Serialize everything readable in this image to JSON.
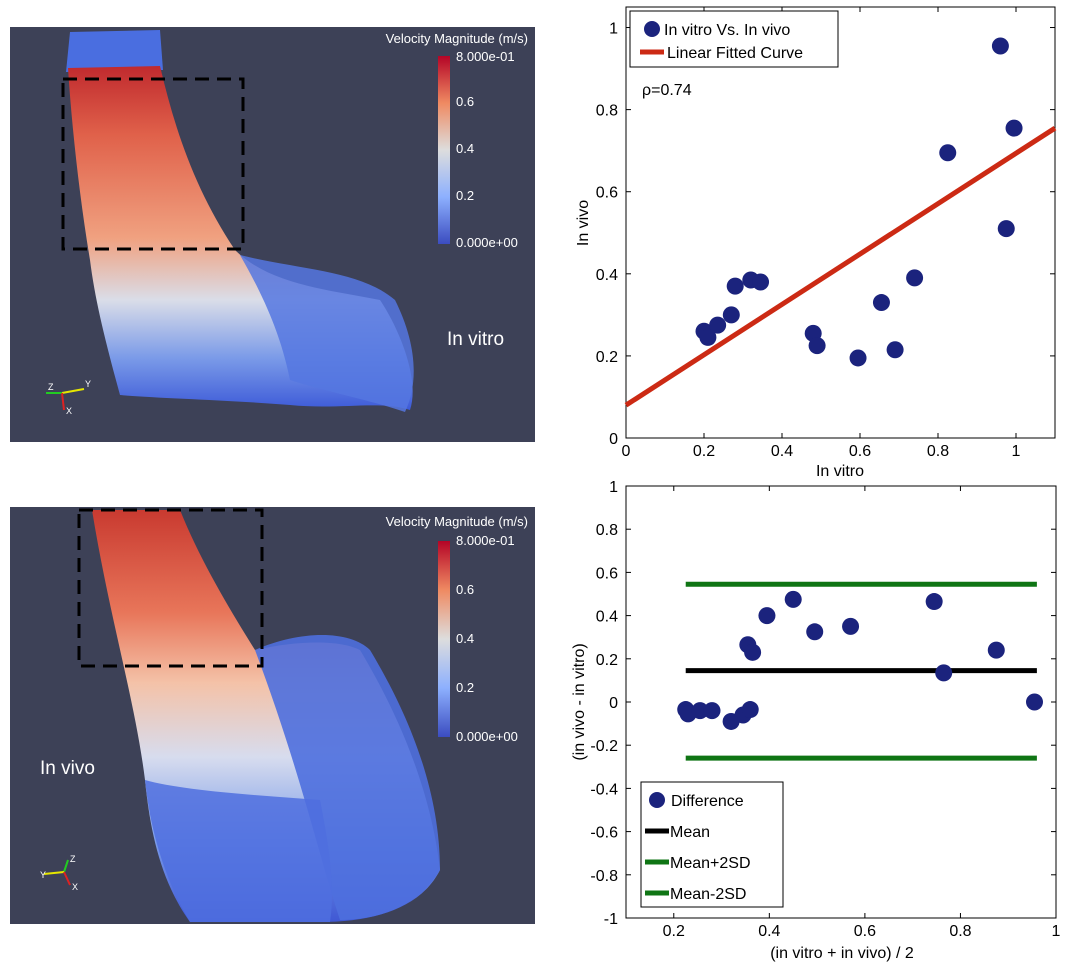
{
  "panels": {
    "top_left": {
      "colorbar_title": "Velocity Magnitude (m/s)",
      "colorbar_ticks": [
        "8.000e-01",
        "0.6",
        "0.4",
        "0.2",
        "0.000e+00"
      ],
      "label": "In vitro",
      "axes_triad": {
        "z": "Z",
        "y": "Y",
        "x": "X"
      }
    },
    "bottom_left": {
      "colorbar_title": "Velocity Magnitude (m/s)",
      "colorbar_ticks": [
        "8.000e-01",
        "0.6",
        "0.4",
        "0.2",
        "0.000e+00"
      ],
      "label": "In vivo",
      "axes_triad": {
        "z": "Z",
        "y": "Y",
        "x": "X"
      }
    }
  },
  "colors": {
    "render_bg": "#3d4157",
    "marker": "#1b237d",
    "fit_line": "#cc2a14",
    "mean_line": "#000000",
    "sd_lines": "#0f7514",
    "colormap_high": "#b40426",
    "colormap_mid": "#dddddd",
    "colormap_low": "#3b4cc0"
  },
  "chart_data": [
    {
      "type": "scatter",
      "xlabel": "In vitro",
      "ylabel": "In vivo",
      "xlim": [
        0,
        1.1
      ],
      "ylim": [
        0,
        1.05
      ],
      "xticks": [
        "0",
        "0.2",
        "0.4",
        "0.6",
        "0.8",
        "1"
      ],
      "yticks": [
        "0",
        "0.2",
        "0.4",
        "0.6",
        "0.8",
        "1"
      ],
      "annotation": "ρ=0.74",
      "legend": [
        "In vitro Vs. In vivo",
        "Linear Fitted Curve"
      ],
      "legend_position": "top-left",
      "series": [
        {
          "name": "In vitro Vs. In vivo",
          "points": [
            [
              0.2,
              0.26
            ],
            [
              0.21,
              0.245
            ],
            [
              0.235,
              0.275
            ],
            [
              0.27,
              0.3
            ],
            [
              0.28,
              0.37
            ],
            [
              0.32,
              0.385
            ],
            [
              0.345,
              0.38
            ],
            [
              0.48,
              0.255
            ],
            [
              0.49,
              0.225
            ],
            [
              0.595,
              0.195
            ],
            [
              0.655,
              0.33
            ],
            [
              0.69,
              0.215
            ],
            [
              0.74,
              0.39
            ],
            [
              0.825,
              0.695
            ],
            [
              0.96,
              0.955
            ],
            [
              0.975,
              0.51
            ],
            [
              0.995,
              0.755
            ]
          ]
        },
        {
          "name": "Linear Fitted Curve",
          "line": [
            [
              0,
              0.08
            ],
            [
              1.1,
              0.755
            ]
          ]
        }
      ]
    },
    {
      "type": "scatter",
      "xlabel": "(in vitro + in vivo) / 2",
      "ylabel": "(in vivo - in vitro)",
      "xlim": [
        0.1,
        1
      ],
      "ylim": [
        -1,
        1
      ],
      "xticks": [
        "0.2",
        "0.4",
        "0.6",
        "0.8",
        "1"
      ],
      "yticks": [
        "-1",
        "-0.8",
        "-0.6",
        "-0.4",
        "-0.2",
        "0",
        "0.2",
        "0.4",
        "0.6",
        "0.8",
        "1"
      ],
      "legend": [
        "Difference",
        "Mean",
        "Mean+2SD",
        "Mean-2SD"
      ],
      "legend_position": "bottom-left",
      "series": [
        {
          "name": "Difference",
          "points": [
            [
              0.225,
              -0.035
            ],
            [
              0.23,
              -0.055
            ],
            [
              0.255,
              -0.04
            ],
            [
              0.28,
              -0.04
            ],
            [
              0.32,
              -0.09
            ],
            [
              0.345,
              -0.06
            ],
            [
              0.36,
              -0.035
            ],
            [
              0.355,
              0.265
            ],
            [
              0.365,
              0.23
            ],
            [
              0.395,
              0.4
            ],
            [
              0.45,
              0.475
            ],
            [
              0.495,
              0.325
            ],
            [
              0.57,
              0.35
            ],
            [
              0.745,
              0.465
            ],
            [
              0.765,
              0.135
            ],
            [
              0.875,
              0.24
            ],
            [
              0.955,
              0.0
            ]
          ]
        },
        {
          "name": "Mean",
          "y": 0.145,
          "x_range": [
            0.225,
            0.96
          ]
        },
        {
          "name": "Mean+2SD",
          "y": 0.545,
          "x_range": [
            0.225,
            0.96
          ]
        },
        {
          "name": "Mean-2SD",
          "y": -0.26,
          "x_range": [
            0.225,
            0.96
          ]
        }
      ]
    }
  ]
}
